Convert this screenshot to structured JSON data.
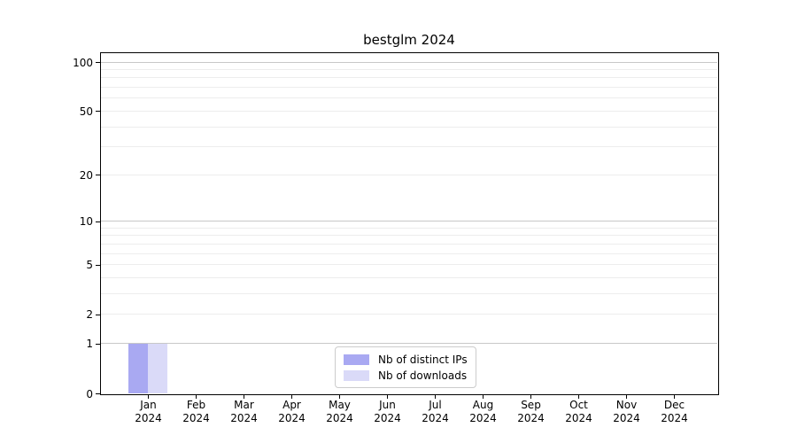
{
  "title": "bestglm 2024",
  "chart_data": {
    "type": "bar",
    "title": "bestglm 2024",
    "categories": [
      "Jan",
      "Feb",
      "Mar",
      "Apr",
      "May",
      "Jun",
      "Jul",
      "Aug",
      "Sep",
      "Oct",
      "Nov",
      "Dec"
    ],
    "category_year": "2024",
    "series": [
      {
        "name": "Nb of distinct IPs",
        "color": "#a9a9f2",
        "values": [
          1,
          0,
          0,
          0,
          0,
          0,
          0,
          0,
          0,
          0,
          0,
          0
        ]
      },
      {
        "name": "Nb of downloads",
        "color": "#dadaf8",
        "values": [
          1,
          0,
          0,
          0,
          0,
          0,
          0,
          0,
          0,
          0,
          0,
          0
        ]
      }
    ],
    "xlabel": "",
    "ylabel": "",
    "y_axis": {
      "ticks": [
        0,
        1,
        2,
        5,
        10,
        20,
        50,
        100
      ],
      "minor_gridlines": [
        3,
        4,
        6,
        7,
        8,
        9,
        30,
        40,
        60,
        70,
        80,
        90
      ],
      "decade_lines": [
        1,
        10,
        100
      ],
      "scale": "log1p",
      "range": [
        0,
        113
      ]
    },
    "grid": true,
    "legend_position": "lower center"
  }
}
